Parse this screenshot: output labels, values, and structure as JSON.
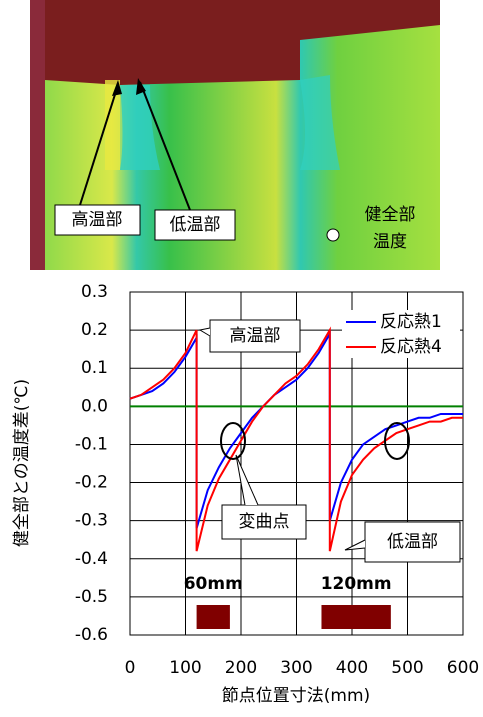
{
  "image_labels": {
    "hot": "高温部",
    "cold": "低温部",
    "sound_1": "健全部",
    "sound_2": "温度"
  },
  "chart_data": {
    "type": "line",
    "xlabel": "節点位置寸法(mm)",
    "ylabel": "健全部との温度差(℃)",
    "x": [
      0,
      20,
      40,
      60,
      80,
      100,
      120,
      120,
      140,
      160,
      180,
      200,
      220,
      240,
      260,
      280,
      300,
      320,
      340,
      360,
      360,
      380,
      400,
      420,
      440,
      460,
      480,
      500,
      520,
      540,
      560,
      580,
      600
    ],
    "series": [
      {
        "name": "反応熱1",
        "color": "#0000ff",
        "values": [
          0.02,
          0.03,
          0.04,
          0.06,
          0.09,
          0.13,
          0.18,
          -0.32,
          -0.22,
          -0.16,
          -0.11,
          -0.07,
          -0.03,
          0.0,
          0.03,
          0.05,
          0.07,
          0.1,
          0.14,
          0.19,
          -0.3,
          -0.2,
          -0.14,
          -0.1,
          -0.08,
          -0.06,
          -0.05,
          -0.04,
          -0.03,
          -0.03,
          -0.02,
          -0.02,
          -0.02
        ]
      },
      {
        "name": "反応熱4",
        "color": "#ff0000",
        "values": [
          0.02,
          0.03,
          0.05,
          0.07,
          0.1,
          0.14,
          0.2,
          -0.38,
          -0.26,
          -0.19,
          -0.14,
          -0.09,
          -0.04,
          0.0,
          0.03,
          0.06,
          0.08,
          0.11,
          0.15,
          0.2,
          -0.38,
          -0.25,
          -0.18,
          -0.14,
          -0.11,
          -0.09,
          -0.07,
          -0.06,
          -0.05,
          -0.04,
          -0.04,
          -0.03,
          -0.03
        ]
      }
    ],
    "reference_line": {
      "value": 0,
      "color": "#008000"
    },
    "xlim": [
      0,
      600
    ],
    "xticks": [
      0,
      100,
      200,
      300,
      400,
      500,
      600
    ],
    "ylim": [
      -0.6,
      0.3
    ],
    "yticks": [
      0.3,
      0.2,
      0.1,
      {
        "value": 0,
        "label": "0.0"
      },
      -0.1,
      -0.2,
      -0.3,
      -0.4,
      -0.5,
      -0.6
    ],
    "grid": true,
    "legend": "upper right",
    "annotations": {
      "hot": "高温部",
      "inflection": "変曲点",
      "cold": "低温部"
    },
    "defects": [
      {
        "label": "60mm",
        "x": [
          120,
          180
        ],
        "color": "#800000"
      },
      {
        "label": "120mm",
        "x": [
          345,
          470
        ],
        "color": "#800000"
      }
    ]
  }
}
